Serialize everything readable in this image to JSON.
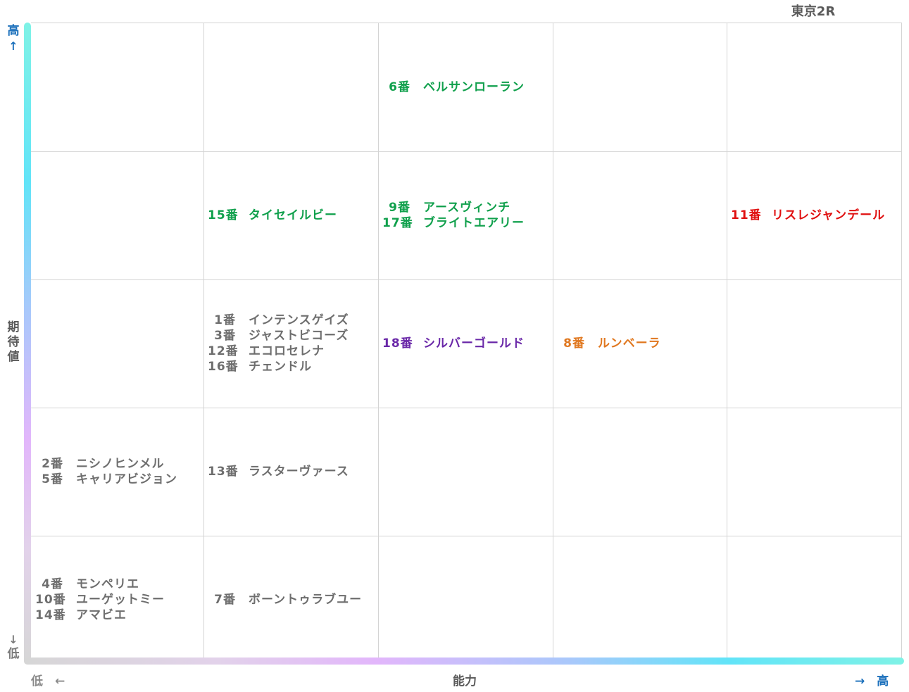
{
  "title": "東京2R",
  "axes": {
    "y_high": "高",
    "y_high_arrow": "↑",
    "y_label": "期待値",
    "y_low_arrow": "↓",
    "y_low": "低",
    "x_low": "低　←",
    "x_label": "能力",
    "x_high": "→　高"
  },
  "colors": {
    "gray": "#6e6e6e",
    "green": "#10a04c",
    "red": "#e01010",
    "purple": "#6a28a8",
    "orange": "#e07820",
    "blue": "#1a6fbb"
  },
  "chart_data": {
    "type": "table",
    "x_axis": "能力",
    "y_axis": "期待値",
    "levels_x": 5,
    "levels_y": 5,
    "cells": [
      {
        "x": 3,
        "y": 5,
        "color": "green",
        "entries": [
          {
            "num": "6番",
            "name": "ベルサンローラン"
          }
        ]
      },
      {
        "x": 2,
        "y": 4,
        "color": "green",
        "entries": [
          {
            "num": "15番",
            "name": "タイセイルビー"
          }
        ]
      },
      {
        "x": 3,
        "y": 4,
        "color": "green",
        "entries": [
          {
            "num": "9番",
            "name": "アースヴィンチ"
          },
          {
            "num": "17番",
            "name": "ブライトエアリー"
          }
        ]
      },
      {
        "x": 5,
        "y": 4,
        "color": "red",
        "entries": [
          {
            "num": "11番",
            "name": "リスレジャンデール"
          }
        ]
      },
      {
        "x": 2,
        "y": 3,
        "color": "gray",
        "entries": [
          {
            "num": "1番",
            "name": "インテンスゲイズ"
          },
          {
            "num": "3番",
            "name": "ジャストビコーズ"
          },
          {
            "num": "12番",
            "name": "エコロセレナ"
          },
          {
            "num": "16番",
            "name": "チェンドル"
          }
        ]
      },
      {
        "x": 3,
        "y": 3,
        "color": "purple",
        "entries": [
          {
            "num": "18番",
            "name": "シルバーゴールド"
          }
        ]
      },
      {
        "x": 4,
        "y": 3,
        "color": "orange",
        "entries": [
          {
            "num": "8番",
            "name": "ルンベーラ"
          }
        ]
      },
      {
        "x": 1,
        "y": 2,
        "color": "gray",
        "entries": [
          {
            "num": "2番",
            "name": "ニシノヒンメル"
          },
          {
            "num": "5番",
            "name": "キャリアビジョン"
          }
        ]
      },
      {
        "x": 2,
        "y": 2,
        "color": "gray",
        "entries": [
          {
            "num": "13番",
            "name": "ラスターヴァース"
          }
        ]
      },
      {
        "x": 1,
        "y": 1,
        "color": "gray",
        "entries": [
          {
            "num": "4番",
            "name": "モンペリエ"
          },
          {
            "num": "10番",
            "name": "ユーゲットミー"
          },
          {
            "num": "14番",
            "name": "アマビエ"
          }
        ]
      },
      {
        "x": 2,
        "y": 1,
        "color": "gray",
        "entries": [
          {
            "num": "7番",
            "name": "ボーントゥラブユー"
          }
        ]
      }
    ]
  }
}
